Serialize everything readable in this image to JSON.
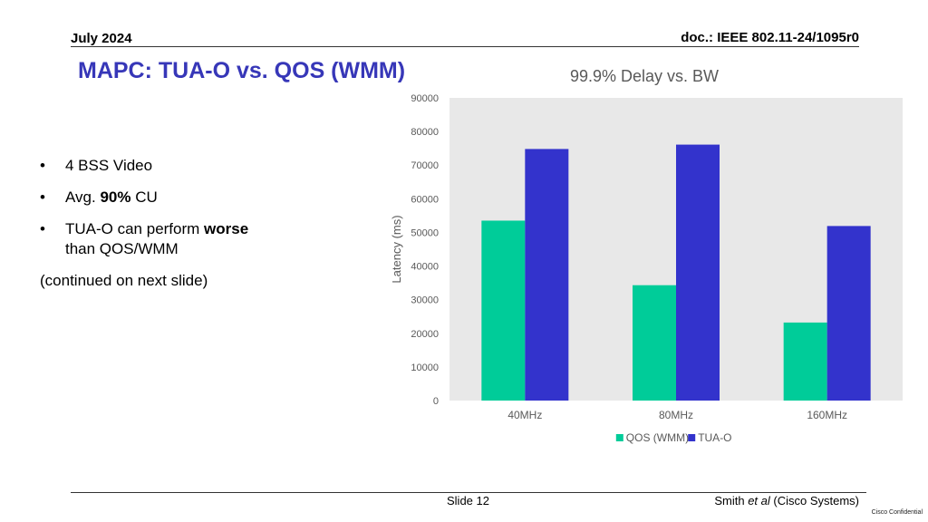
{
  "header": {
    "date": "July 2024",
    "doc": "doc.: IEEE 802.11-24/1095r0"
  },
  "slide": {
    "title": "MAPC: TUA-O vs. QOS (WMM)",
    "bullets": [
      {
        "pre": "4 BSS Video",
        "bold": "",
        "post": "",
        "line2": ""
      },
      {
        "pre": "Avg. ",
        "bold": "90%",
        "post": " CU",
        "line2": ""
      },
      {
        "pre": "TUA-O can perform ",
        "bold": "worse",
        "post": "",
        "line2": "than QOS/WMM"
      }
    ],
    "note": "(continued on next slide)"
  },
  "chart_data": {
    "type": "bar",
    "title": "99.9% Delay vs. BW",
    "ylabel": "Latency (ms)",
    "xlabel": "",
    "categories": [
      "40MHz",
      "80MHz",
      "160MHz"
    ],
    "series": [
      {
        "name": "QOS (WMM)",
        "color": "#00cc99",
        "values": [
          53500,
          34300,
          23200
        ]
      },
      {
        "name": "TUA-O",
        "color": "#3333cc",
        "values": [
          74800,
          76100,
          51900
        ]
      }
    ],
    "ylim": [
      0,
      90000
    ],
    "yticks": [
      0,
      10000,
      20000,
      30000,
      40000,
      50000,
      60000,
      70000,
      80000,
      90000
    ],
    "grid": false,
    "plot_background": "#e8e8e8",
    "legend": "bottom"
  },
  "footer": {
    "slide": "Slide 12",
    "author_name": "Smith ",
    "author_etal": "et al",
    "author_org": " (Cisco Systems)",
    "confidential": "Cisco Confidential"
  }
}
